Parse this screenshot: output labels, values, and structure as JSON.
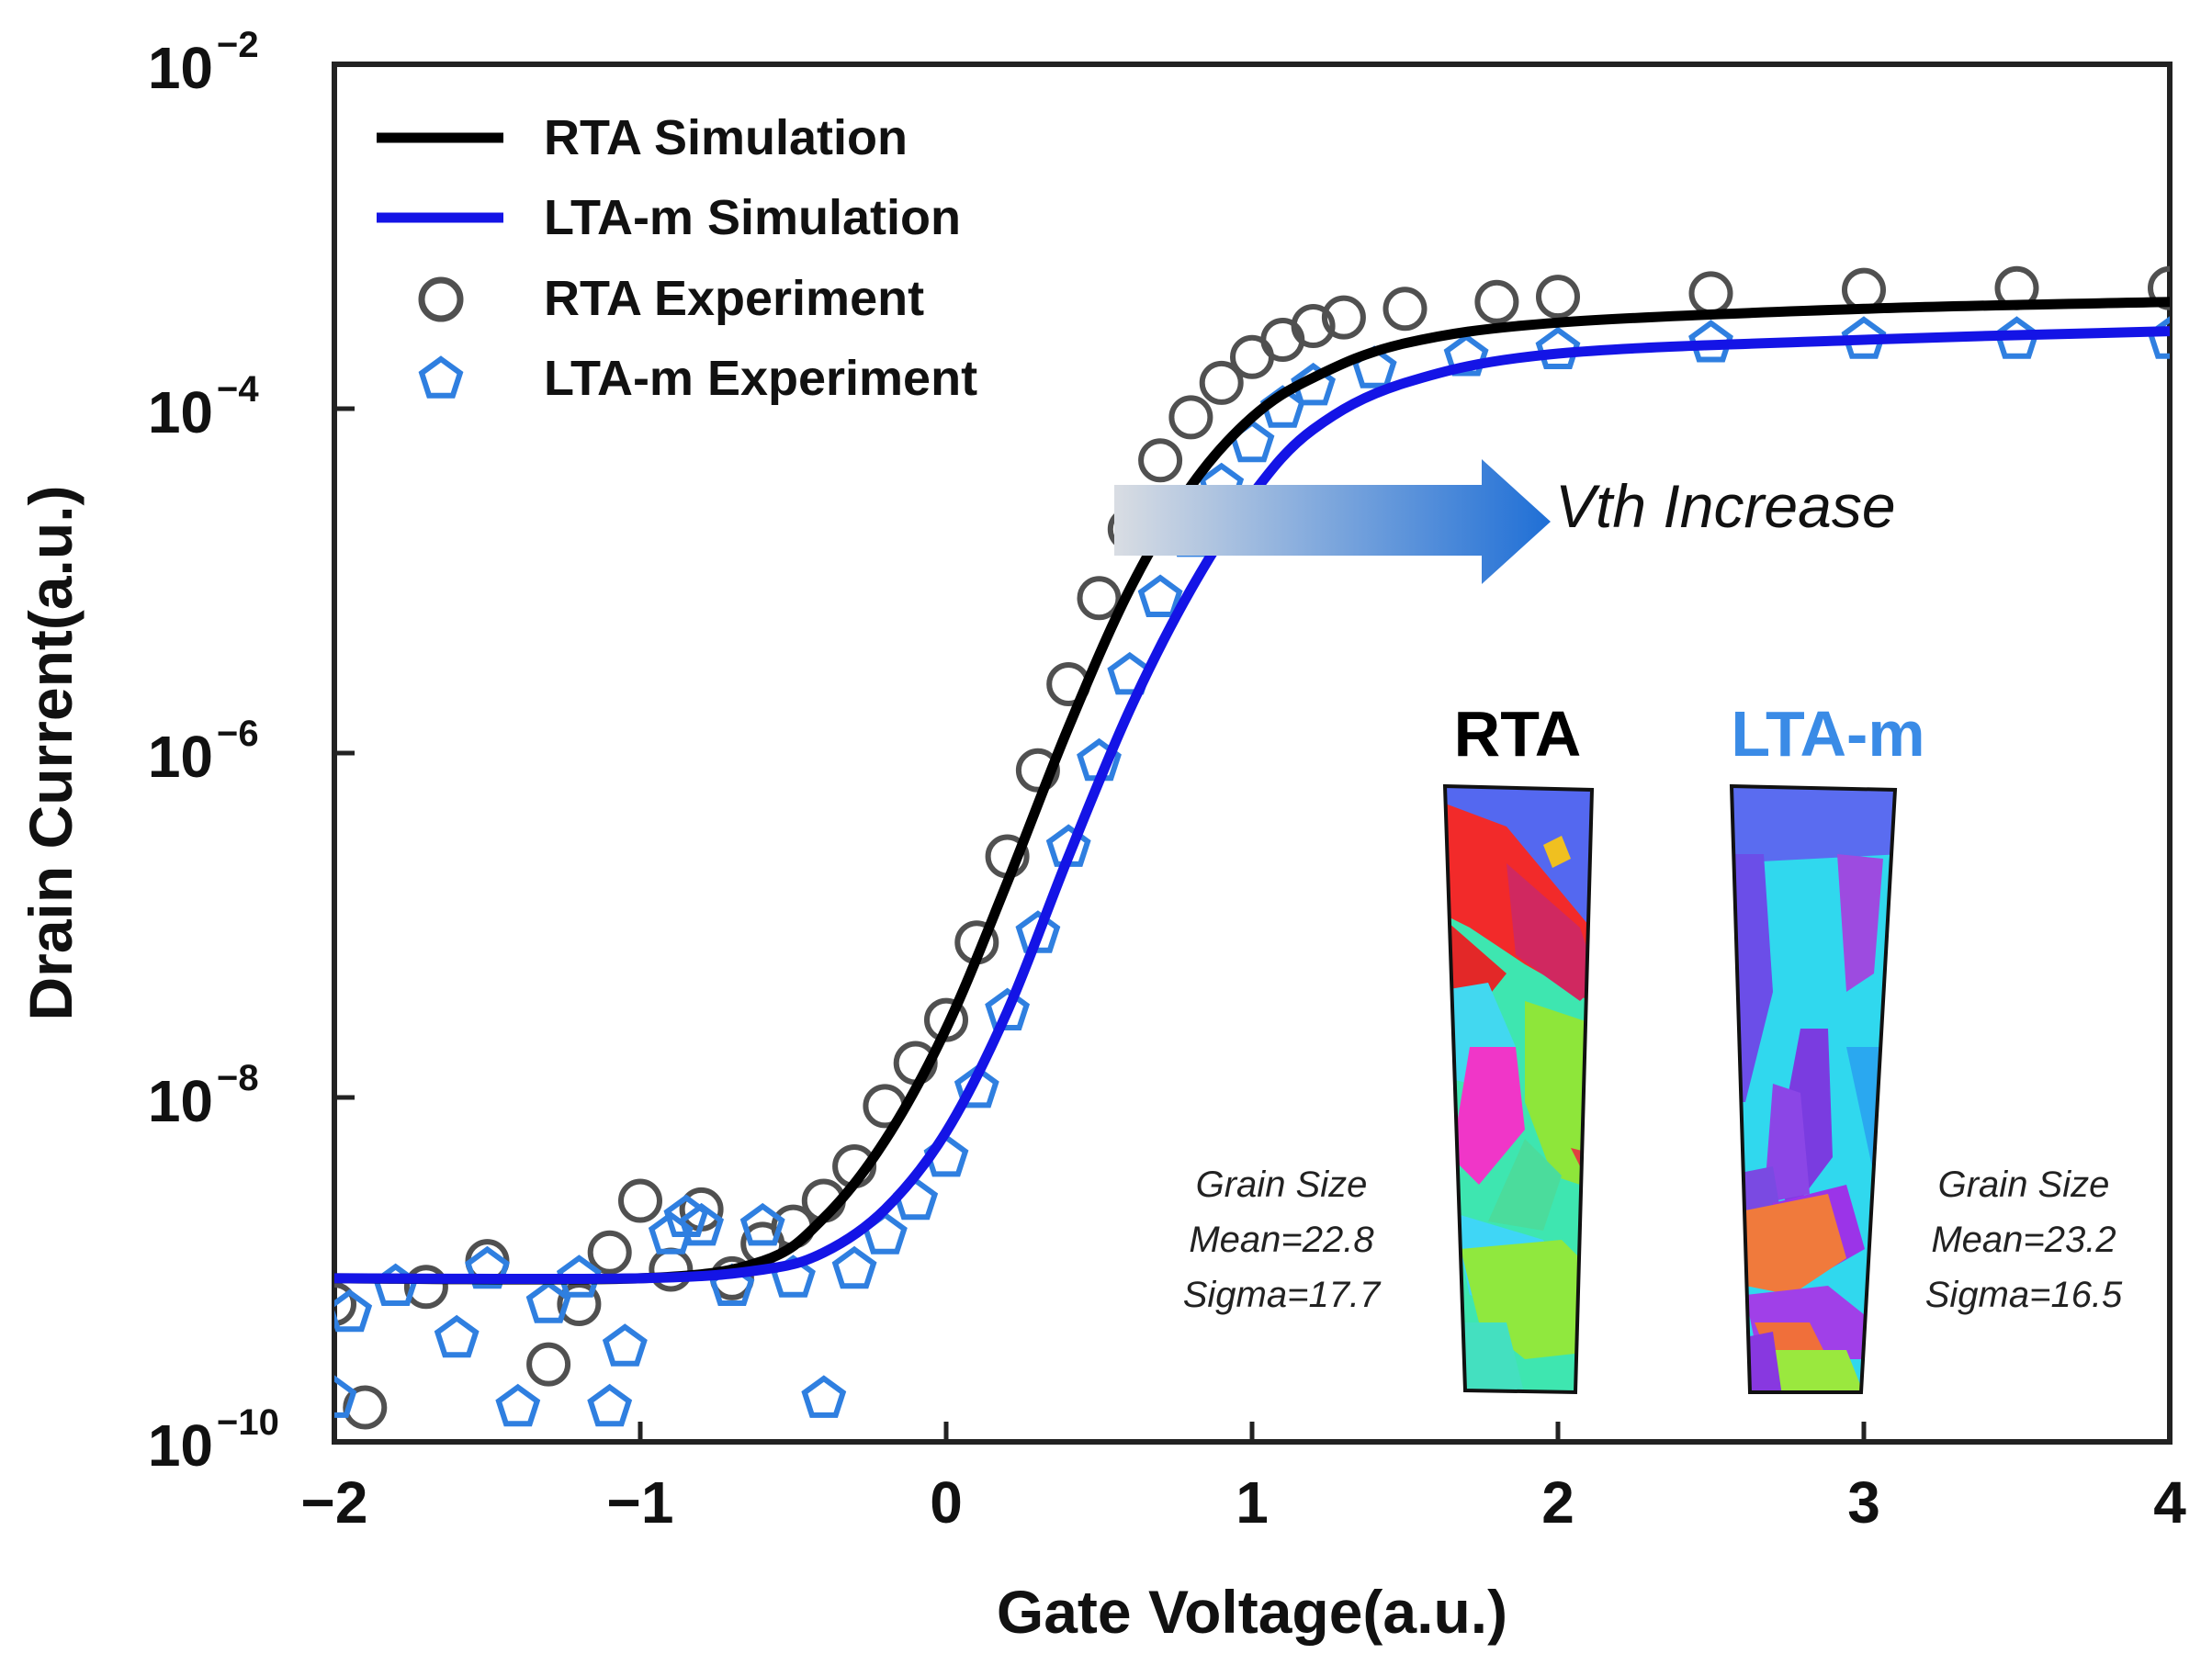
{
  "colors": {
    "rta_line": "#000000",
    "ltam_line": "#1414e6",
    "rta_marker": "#505050",
    "ltam_marker": "#2f7fe0",
    "ltam_title": "#3a8be6",
    "arrow_start": "#d9dde3",
    "arrow_end": "#1f6fd6"
  },
  "chart_data": {
    "type": "line",
    "xlabel": "Gate Voltage(a.u.)",
    "ylabel": "Drain Current(a.u.)",
    "xlim": [
      -2,
      4
    ],
    "ylim_log10": [
      -10,
      -2
    ],
    "x_ticks": [
      {
        "value": -2,
        "label": "−2"
      },
      {
        "value": -1,
        "label": "−1"
      },
      {
        "value": 0,
        "label": "0"
      },
      {
        "value": 1,
        "label": "1"
      },
      {
        "value": 2,
        "label": "2"
      },
      {
        "value": 3,
        "label": "3"
      },
      {
        "value": 4,
        "label": "4"
      }
    ],
    "y_ticks": [
      {
        "value": -2,
        "base": "10",
        "exp": "−2"
      },
      {
        "value": -4,
        "base": "10",
        "exp": "−4"
      },
      {
        "value": -6,
        "base": "10",
        "exp": "−6"
      },
      {
        "value": -8,
        "base": "10",
        "exp": "−8"
      },
      {
        "value": -10,
        "base": "10",
        "exp": "−10"
      }
    ],
    "series": [
      {
        "name": "RTA Simulation",
        "kind": "line",
        "x": [
          -2.0,
          -1.0,
          -0.6,
          -0.4,
          -0.2,
          0.0,
          0.2,
          0.4,
          0.6,
          0.8,
          1.0,
          1.2,
          1.5,
          2.0,
          3.0,
          4.0
        ],
        "log10y": [
          -9.05,
          -9.05,
          -8.95,
          -8.7,
          -8.25,
          -7.6,
          -6.75,
          -5.85,
          -5.05,
          -4.45,
          -4.05,
          -3.82,
          -3.62,
          -3.5,
          -3.42,
          -3.38
        ]
      },
      {
        "name": "LTA-m Simulation",
        "kind": "line",
        "x": [
          -2.0,
          -1.0,
          -0.6,
          -0.4,
          -0.2,
          0.0,
          0.2,
          0.4,
          0.6,
          0.8,
          1.0,
          1.2,
          1.5,
          2.0,
          3.0,
          4.0
        ],
        "log10y": [
          -9.05,
          -9.05,
          -9.0,
          -8.9,
          -8.65,
          -8.2,
          -7.5,
          -6.6,
          -5.75,
          -5.05,
          -4.5,
          -4.12,
          -3.85,
          -3.68,
          -3.6,
          -3.55
        ]
      },
      {
        "name": "RTA Experiment",
        "kind": "scatter",
        "marker": "circle",
        "x": [
          -2.0,
          -1.9,
          -1.7,
          -1.5,
          -1.3,
          -1.2,
          -1.1,
          -1.0,
          -0.9,
          -0.8,
          -0.7,
          -0.6,
          -0.5,
          -0.4,
          -0.3,
          -0.2,
          -0.1,
          0.0,
          0.1,
          0.2,
          0.3,
          0.4,
          0.5,
          0.6,
          0.7,
          0.8,
          0.9,
          1.0,
          1.1,
          1.2,
          1.3,
          1.5,
          1.8,
          2.0,
          2.5,
          3.0,
          3.5,
          4.0
        ],
        "log10y": [
          -9.2,
          -9.8,
          -9.1,
          -8.95,
          -9.55,
          -9.2,
          -8.9,
          -8.6,
          -9.0,
          -8.65,
          -9.05,
          -8.85,
          -8.75,
          -8.6,
          -8.4,
          -8.05,
          -7.8,
          -7.55,
          -7.1,
          -6.6,
          -6.1,
          -5.6,
          -5.1,
          -4.7,
          -4.3,
          -4.05,
          -3.85,
          -3.7,
          -3.6,
          -3.52,
          -3.47,
          -3.42,
          -3.38,
          -3.35,
          -3.33,
          -3.31,
          -3.3,
          -3.3
        ]
      },
      {
        "name": "LTA-m Experiment",
        "kind": "scatter",
        "marker": "pentagon",
        "x": [
          -2.0,
          -1.95,
          -1.8,
          -1.6,
          -1.5,
          -1.4,
          -1.3,
          -1.2,
          -1.1,
          -1.05,
          -0.9,
          -0.85,
          -0.8,
          -0.7,
          -0.6,
          -0.5,
          -0.4,
          -0.3,
          -0.2,
          -0.1,
          0.0,
          0.1,
          0.2,
          0.3,
          0.4,
          0.5,
          0.6,
          0.7,
          0.8,
          0.9,
          1.0,
          1.1,
          1.2,
          1.4,
          1.7,
          2.0,
          2.5,
          3.0,
          3.5,
          4.0
        ],
        "log10y": [
          -9.75,
          -9.25,
          -9.1,
          -9.4,
          -9.0,
          -9.8,
          -9.2,
          -9.05,
          -9.8,
          -9.45,
          -8.8,
          -8.7,
          -8.75,
          -9.1,
          -8.75,
          -9.05,
          -9.75,
          -9.0,
          -8.8,
          -8.6,
          -8.35,
          -7.95,
          -7.5,
          -7.05,
          -6.55,
          -6.05,
          -5.55,
          -5.1,
          -4.75,
          -4.45,
          -4.2,
          -4.0,
          -3.87,
          -3.77,
          -3.7,
          -3.66,
          -3.62,
          -3.6,
          -3.6,
          -3.6
        ]
      }
    ],
    "legend_position": "top-left",
    "annotations": {
      "arrow_label": "Vth Increase",
      "insets": [
        {
          "title": "RTA",
          "stats": [
            "Grain Size",
            "Mean=22.8",
            "Sigma=17.7"
          ]
        },
        {
          "title": "LTA-m",
          "stats": [
            "Grain Size",
            "Mean=23.2",
            "Sigma=16.5"
          ]
        }
      ]
    }
  }
}
